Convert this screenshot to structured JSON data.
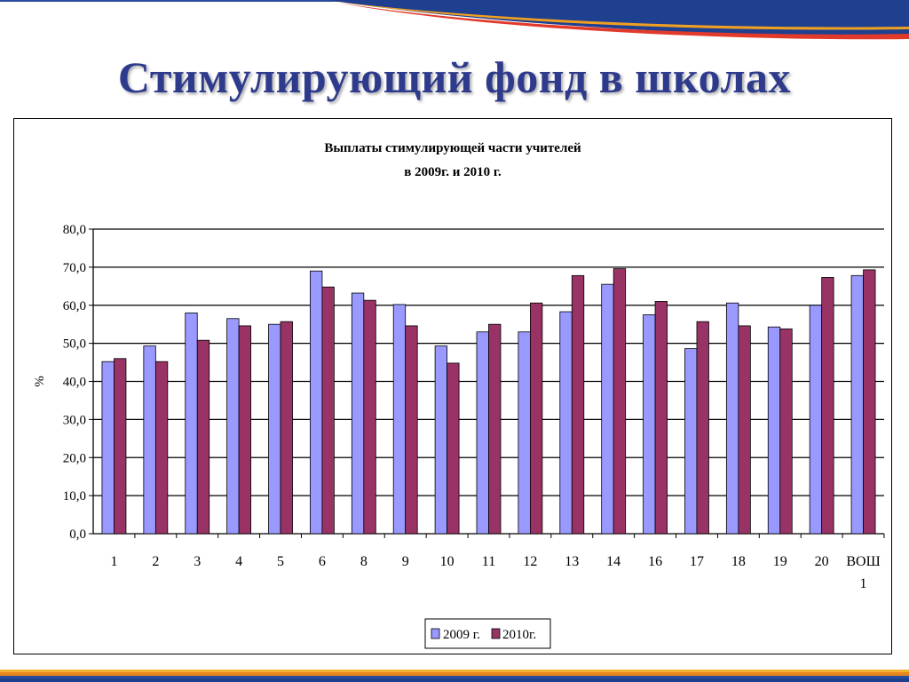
{
  "slide": {
    "title": "Стимулирующий фонд в школах"
  },
  "chart_data": {
    "type": "bar",
    "title_lines": [
      "Выплаты стимулирующей части учителей",
      "в 2009г. и 2010 г."
    ],
    "ylabel": "%",
    "xlabel": "",
    "ylim": [
      0,
      80
    ],
    "ytick_labels": [
      "0,0",
      "10,0",
      "20,0",
      "30,0",
      "40,0",
      "50,0",
      "60,0",
      "70,0",
      "80,0"
    ],
    "grid": true,
    "legend_position": "bottom",
    "categories": [
      "1",
      "2",
      "3",
      "4",
      "5",
      "6",
      "8",
      "9",
      "10",
      "11",
      "12",
      "13",
      "14",
      "16",
      "17",
      "18",
      "19",
      "20",
      "ВОШ 1"
    ],
    "series": [
      {
        "name": "2009 г.",
        "color": "#9999ff",
        "values": [
          45.2,
          49.3,
          58.0,
          56.5,
          55.0,
          69.0,
          63.2,
          60.2,
          49.3,
          53.0,
          53.0,
          58.3,
          65.5,
          57.5,
          48.6,
          60.6,
          54.3,
          60.0,
          67.8
        ]
      },
      {
        "name": "2010г.",
        "color": "#993366",
        "values": [
          46.0,
          45.2,
          50.8,
          54.6,
          55.7,
          64.8,
          61.3,
          54.6,
          44.8,
          55.0,
          60.6,
          67.8,
          69.6,
          61.0,
          55.7,
          54.6,
          53.8,
          67.3,
          69.3
        ]
      }
    ]
  }
}
